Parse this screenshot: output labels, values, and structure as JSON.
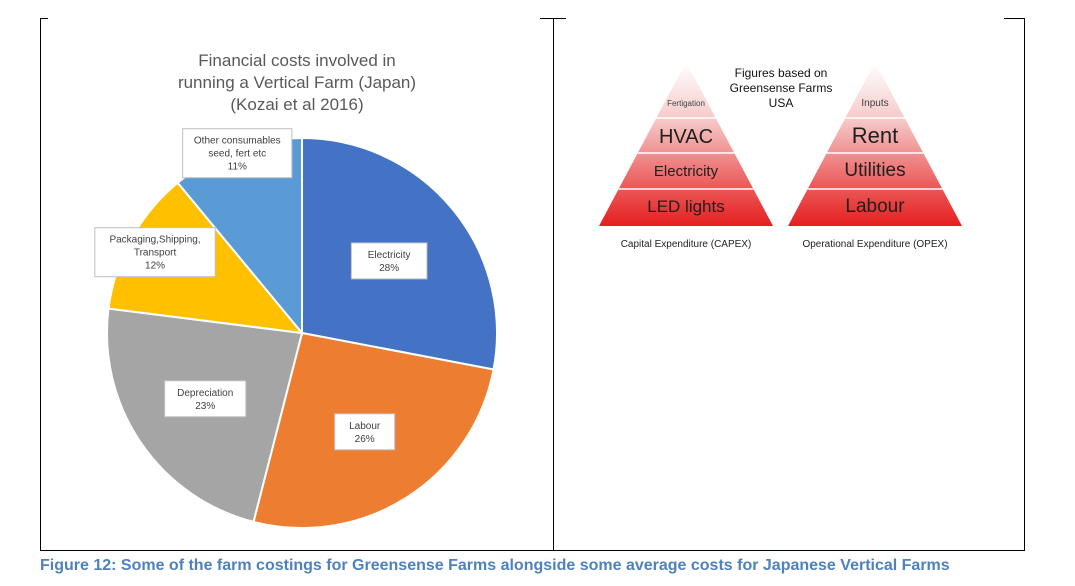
{
  "caption": "Figure 12: Some of the farm costings for Greensense Farms alongside some average costs for Japanese Vertical Farms",
  "chart_data": [
    {
      "type": "pie",
      "title": [
        "Financial costs involved in",
        "running a Vertical Farm (Japan)",
        "(Kozai et al 2016)"
      ],
      "slices": [
        {
          "label": "Electricity",
          "value": 28,
          "display": "28%",
          "color": "#4472c4"
        },
        {
          "label": "Labour",
          "value": 26,
          "display": "26%",
          "color": "#ed7d31"
        },
        {
          "label": "Depreciation",
          "value": 23,
          "display": "23%",
          "color": "#a5a5a5"
        },
        {
          "label": "Packaging,Shipping, Transport",
          "value": 12,
          "display": "12%",
          "color": "#ffc000"
        },
        {
          "label": "Other consumables seed, fert etc",
          "value": 11,
          "display": "11%",
          "color": "#5b9bd5"
        }
      ]
    },
    {
      "type": "diagram",
      "note": [
        "Figures based on",
        "Greensense Farms",
        "USA"
      ],
      "pyramids": [
        {
          "caption": "Capital Expenditure (CAPEX)",
          "tiers": [
            "Fertigation",
            "HVAC",
            "Electricity",
            "LED lights"
          ]
        },
        {
          "caption": "Operational Expenditure (OPEX)",
          "tiers": [
            "Inputs",
            "Rent",
            "Utilities",
            "Labour"
          ]
        }
      ]
    }
  ]
}
